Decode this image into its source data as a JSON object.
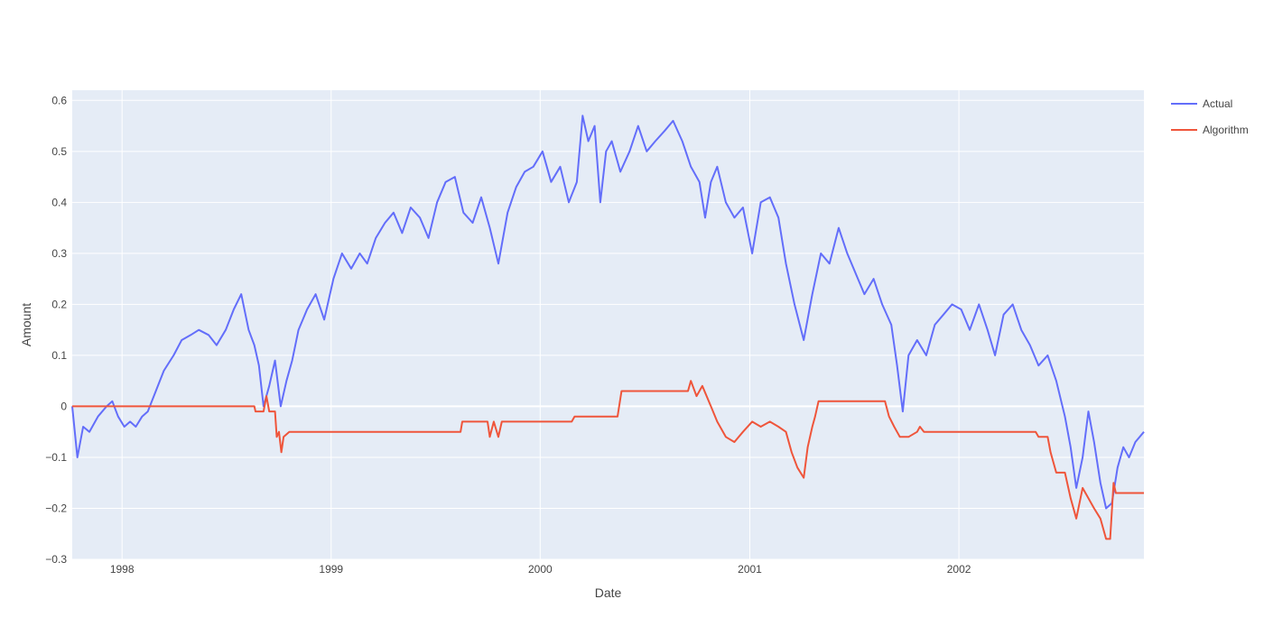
{
  "chart_data": {
    "type": "line",
    "title": "",
    "xlabel": "Date",
    "ylabel": "Amount",
    "x_range": [
      "1997-10-06",
      "2002-11-20"
    ],
    "ylim": [
      -0.3,
      0.62
    ],
    "x_ticks": [
      "1998",
      "1999",
      "2000",
      "2001",
      "2002"
    ],
    "y_ticks": [
      "0.6",
      "0.5",
      "0.4",
      "0.3",
      "0.2",
      "0.1",
      "0",
      "−0.1",
      "−0.2",
      "−0.3"
    ],
    "grid": true,
    "legend_position": "top-right",
    "background": "#e5ecf6",
    "series": [
      {
        "name": "Actual",
        "color": "#636efa",
        "points": [
          [
            "1997-10-06",
            0.0
          ],
          [
            "1997-10-15",
            -0.1
          ],
          [
            "1997-10-25",
            -0.04
          ],
          [
            "1997-11-05",
            -0.05
          ],
          [
            "1997-11-20",
            -0.02
          ],
          [
            "1997-12-05",
            0.0
          ],
          [
            "1997-12-15",
            0.01
          ],
          [
            "1997-12-25",
            -0.02
          ],
          [
            "1998-01-05",
            -0.04
          ],
          [
            "1998-01-15",
            -0.03
          ],
          [
            "1998-01-25",
            -0.04
          ],
          [
            "1998-02-05",
            -0.02
          ],
          [
            "1998-02-15",
            -0.01
          ],
          [
            "1998-03-01",
            0.03
          ],
          [
            "1998-03-15",
            0.07
          ],
          [
            "1998-04-01",
            0.1
          ],
          [
            "1998-04-15",
            0.13
          ],
          [
            "1998-05-01",
            0.14
          ],
          [
            "1998-05-15",
            0.15
          ],
          [
            "1998-06-01",
            0.14
          ],
          [
            "1998-06-15",
            0.12
          ],
          [
            "1998-07-01",
            0.15
          ],
          [
            "1998-07-15",
            0.19
          ],
          [
            "1998-07-28",
            0.22
          ],
          [
            "1998-08-10",
            0.15
          ],
          [
            "1998-08-20",
            0.12
          ],
          [
            "1998-08-28",
            0.08
          ],
          [
            "1998-09-05",
            0.0
          ],
          [
            "1998-09-15",
            0.04
          ],
          [
            "1998-09-25",
            0.09
          ],
          [
            "1998-10-05",
            0.0
          ],
          [
            "1998-10-15",
            0.05
          ],
          [
            "1998-10-25",
            0.09
          ],
          [
            "1998-11-05",
            0.15
          ],
          [
            "1998-11-20",
            0.19
          ],
          [
            "1998-12-05",
            0.22
          ],
          [
            "1998-12-20",
            0.17
          ],
          [
            "1999-01-05",
            0.25
          ],
          [
            "1999-01-20",
            0.3
          ],
          [
            "1999-02-05",
            0.27
          ],
          [
            "1999-02-20",
            0.3
          ],
          [
            "1999-03-05",
            0.28
          ],
          [
            "1999-03-20",
            0.33
          ],
          [
            "1999-04-05",
            0.36
          ],
          [
            "1999-04-20",
            0.38
          ],
          [
            "1999-05-05",
            0.34
          ],
          [
            "1999-05-20",
            0.39
          ],
          [
            "1999-06-05",
            0.37
          ],
          [
            "1999-06-20",
            0.33
          ],
          [
            "1999-07-05",
            0.4
          ],
          [
            "1999-07-20",
            0.44
          ],
          [
            "1999-08-05",
            0.45
          ],
          [
            "1999-08-20",
            0.38
          ],
          [
            "1999-09-05",
            0.36
          ],
          [
            "1999-09-20",
            0.41
          ],
          [
            "1999-10-05",
            0.35
          ],
          [
            "1999-10-20",
            0.28
          ],
          [
            "1999-11-05",
            0.38
          ],
          [
            "1999-11-20",
            0.43
          ],
          [
            "1999-12-05",
            0.46
          ],
          [
            "1999-12-20",
            0.47
          ],
          [
            "2000-01-05",
            0.5
          ],
          [
            "2000-01-20",
            0.44
          ],
          [
            "2000-02-05",
            0.47
          ],
          [
            "2000-02-20",
            0.4
          ],
          [
            "2000-03-05",
            0.44
          ],
          [
            "2000-03-15",
            0.57
          ],
          [
            "2000-03-25",
            0.52
          ],
          [
            "2000-04-05",
            0.55
          ],
          [
            "2000-04-15",
            0.4
          ],
          [
            "2000-04-25",
            0.5
          ],
          [
            "2000-05-05",
            0.52
          ],
          [
            "2000-05-20",
            0.46
          ],
          [
            "2000-06-05",
            0.5
          ],
          [
            "2000-06-20",
            0.55
          ],
          [
            "2000-07-05",
            0.5
          ],
          [
            "2000-07-20",
            0.52
          ],
          [
            "2000-08-05",
            0.54
          ],
          [
            "2000-08-20",
            0.56
          ],
          [
            "2000-09-05",
            0.52
          ],
          [
            "2000-09-20",
            0.47
          ],
          [
            "2000-10-05",
            0.44
          ],
          [
            "2000-10-15",
            0.37
          ],
          [
            "2000-10-25",
            0.44
          ],
          [
            "2000-11-05",
            0.47
          ],
          [
            "2000-11-20",
            0.4
          ],
          [
            "2000-12-05",
            0.37
          ],
          [
            "2000-12-20",
            0.39
          ],
          [
            "2001-01-05",
            0.3
          ],
          [
            "2001-01-20",
            0.4
          ],
          [
            "2001-02-05",
            0.41
          ],
          [
            "2001-02-20",
            0.37
          ],
          [
            "2001-03-05",
            0.28
          ],
          [
            "2001-03-20",
            0.2
          ],
          [
            "2001-04-05",
            0.13
          ],
          [
            "2001-04-20",
            0.22
          ],
          [
            "2001-05-05",
            0.3
          ],
          [
            "2001-05-20",
            0.28
          ],
          [
            "2001-06-05",
            0.35
          ],
          [
            "2001-06-20",
            0.3
          ],
          [
            "2001-07-05",
            0.26
          ],
          [
            "2001-07-20",
            0.22
          ],
          [
            "2001-08-05",
            0.25
          ],
          [
            "2001-08-20",
            0.2
          ],
          [
            "2001-09-05",
            0.16
          ],
          [
            "2001-09-15",
            0.08
          ],
          [
            "2001-09-25",
            -0.01
          ],
          [
            "2001-10-05",
            0.1
          ],
          [
            "2001-10-20",
            0.13
          ],
          [
            "2001-11-05",
            0.1
          ],
          [
            "2001-11-20",
            0.16
          ],
          [
            "2001-12-05",
            0.18
          ],
          [
            "2001-12-20",
            0.2
          ],
          [
            "2002-01-05",
            0.19
          ],
          [
            "2002-01-20",
            0.15
          ],
          [
            "2002-02-05",
            0.2
          ],
          [
            "2002-02-20",
            0.15
          ],
          [
            "2002-03-05",
            0.1
          ],
          [
            "2002-03-20",
            0.18
          ],
          [
            "2002-04-05",
            0.2
          ],
          [
            "2002-04-20",
            0.15
          ],
          [
            "2002-05-05",
            0.12
          ],
          [
            "2002-05-20",
            0.08
          ],
          [
            "2002-06-05",
            0.1
          ],
          [
            "2002-06-20",
            0.05
          ],
          [
            "2002-07-05",
            -0.02
          ],
          [
            "2002-07-15",
            -0.08
          ],
          [
            "2002-07-25",
            -0.16
          ],
          [
            "2002-08-05",
            -0.1
          ],
          [
            "2002-08-15",
            -0.01
          ],
          [
            "2002-08-25",
            -0.07
          ],
          [
            "2002-09-05",
            -0.15
          ],
          [
            "2002-09-15",
            -0.2
          ],
          [
            "2002-09-25",
            -0.19
          ],
          [
            "2002-10-05",
            -0.12
          ],
          [
            "2002-10-15",
            -0.08
          ],
          [
            "2002-10-25",
            -0.1
          ],
          [
            "2002-11-05",
            -0.07
          ],
          [
            "2002-11-20",
            -0.05
          ]
        ]
      },
      {
        "name": "Algorithm",
        "color": "#ef553b",
        "points": [
          [
            "1997-10-06",
            0.0
          ],
          [
            "1998-08-20",
            0.0
          ],
          [
            "1998-08-22",
            -0.01
          ],
          [
            "1998-09-05",
            -0.01
          ],
          [
            "1998-09-10",
            0.02
          ],
          [
            "1998-09-15",
            -0.01
          ],
          [
            "1998-09-25",
            -0.01
          ],
          [
            "1998-09-28",
            -0.06
          ],
          [
            "1998-10-02",
            -0.05
          ],
          [
            "1998-10-06",
            -0.09
          ],
          [
            "1998-10-10",
            -0.06
          ],
          [
            "1998-10-20",
            -0.05
          ],
          [
            "1999-08-15",
            -0.05
          ],
          [
            "1999-08-18",
            -0.03
          ],
          [
            "1999-10-01",
            -0.03
          ],
          [
            "1999-10-05",
            -0.06
          ],
          [
            "1999-10-12",
            -0.03
          ],
          [
            "1999-10-20",
            -0.06
          ],
          [
            "1999-10-26",
            -0.03
          ],
          [
            "2000-02-25",
            -0.03
          ],
          [
            "2000-03-01",
            -0.02
          ],
          [
            "2000-05-15",
            -0.02
          ],
          [
            "2000-05-22",
            0.03
          ],
          [
            "2000-09-15",
            0.03
          ],
          [
            "2000-09-20",
            0.05
          ],
          [
            "2000-09-30",
            0.02
          ],
          [
            "2000-10-10",
            0.04
          ],
          [
            "2000-10-25",
            0.0
          ],
          [
            "2000-11-05",
            -0.03
          ],
          [
            "2000-11-20",
            -0.06
          ],
          [
            "2000-12-05",
            -0.07
          ],
          [
            "2000-12-20",
            -0.05
          ],
          [
            "2001-01-05",
            -0.03
          ],
          [
            "2001-01-20",
            -0.04
          ],
          [
            "2001-02-05",
            -0.03
          ],
          [
            "2001-02-20",
            -0.04
          ],
          [
            "2001-03-05",
            -0.05
          ],
          [
            "2001-03-15",
            -0.09
          ],
          [
            "2001-03-25",
            -0.12
          ],
          [
            "2001-04-05",
            -0.14
          ],
          [
            "2001-04-12",
            -0.08
          ],
          [
            "2001-04-20",
            -0.04
          ],
          [
            "2001-04-25",
            -0.02
          ],
          [
            "2001-05-01",
            0.01
          ],
          [
            "2001-08-25",
            0.01
          ],
          [
            "2001-09-01",
            -0.02
          ],
          [
            "2001-09-10",
            -0.04
          ],
          [
            "2001-09-20",
            -0.06
          ],
          [
            "2001-10-05",
            -0.06
          ],
          [
            "2001-10-20",
            -0.05
          ],
          [
            "2001-10-25",
            -0.04
          ],
          [
            "2001-11-01",
            -0.05
          ],
          [
            "2001-11-05",
            -0.05
          ],
          [
            "2002-05-15",
            -0.05
          ],
          [
            "2002-05-20",
            -0.06
          ],
          [
            "2002-06-05",
            -0.06
          ],
          [
            "2002-06-10",
            -0.09
          ],
          [
            "2002-06-20",
            -0.13
          ],
          [
            "2002-07-05",
            -0.13
          ],
          [
            "2002-07-15",
            -0.18
          ],
          [
            "2002-07-25",
            -0.22
          ],
          [
            "2002-08-05",
            -0.16
          ],
          [
            "2002-08-15",
            -0.18
          ],
          [
            "2002-08-25",
            -0.2
          ],
          [
            "2002-09-05",
            -0.22
          ],
          [
            "2002-09-15",
            -0.26
          ],
          [
            "2002-09-22",
            -0.26
          ],
          [
            "2002-09-28",
            -0.15
          ],
          [
            "2002-10-02",
            -0.17
          ],
          [
            "2002-11-20",
            -0.17
          ]
        ]
      }
    ]
  }
}
